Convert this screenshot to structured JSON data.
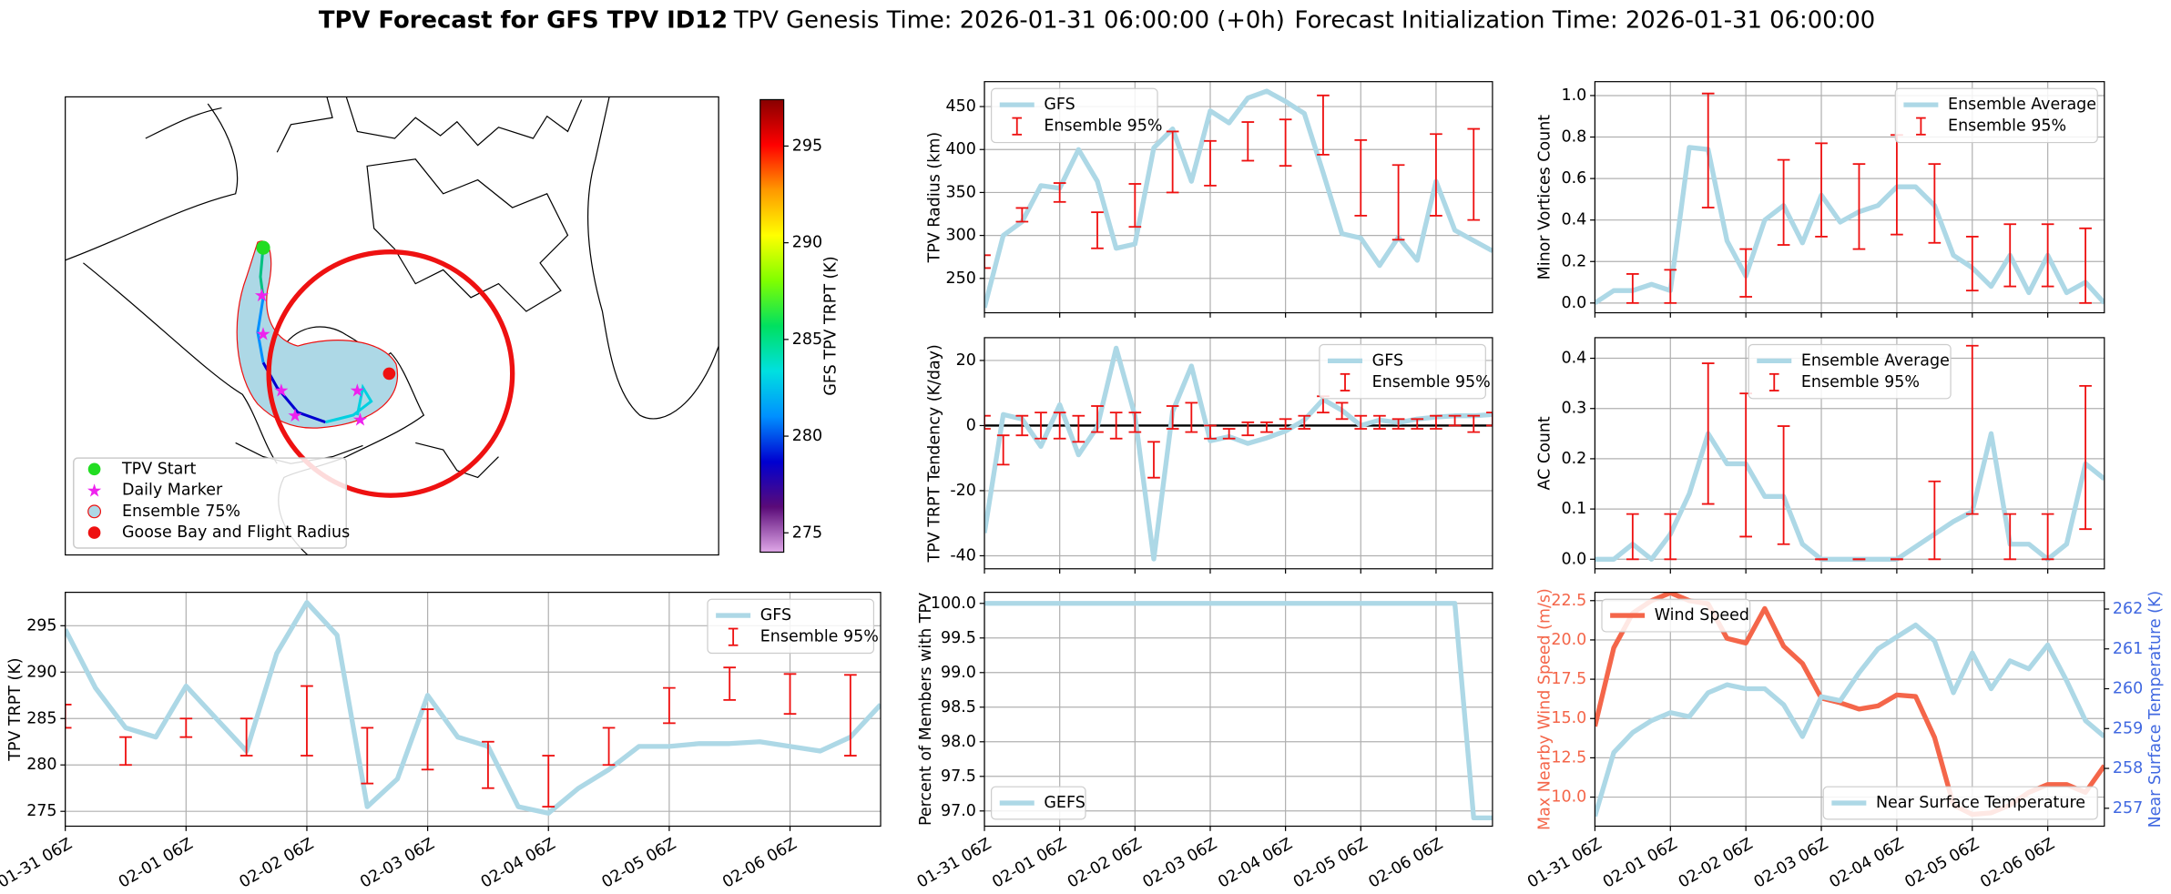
{
  "figure": {
    "title": "TPV Forecast for GFS TPV ID12",
    "genesis": "TPV Genesis Time: 2026-01-31 06:00:00 (+0h)",
    "init": "Forecast Initialization Time: 2026-01-31 06:00:00"
  },
  "time_axis": {
    "x": [
      "01-31 06Z",
      "01-31 12Z",
      "01-31 18Z",
      "02-01 00Z",
      "02-01 06Z",
      "02-01 12Z",
      "02-01 18Z",
      "02-02 00Z",
      "02-02 06Z",
      "02-02 12Z",
      "02-02 18Z",
      "02-03 00Z",
      "02-03 06Z",
      "02-03 12Z",
      "02-03 18Z",
      "02-04 00Z",
      "02-04 06Z",
      "02-04 12Z",
      "02-04 18Z",
      "02-05 00Z",
      "02-05 06Z",
      "02-05 12Z",
      "02-05 18Z",
      "02-06 00Z",
      "02-06 06Z",
      "02-06 12Z",
      "02-06 18Z",
      "02-07 00Z"
    ],
    "xticks": [
      "01-31 06Z",
      "02-01 06Z",
      "02-02 06Z",
      "02-03 06Z",
      "02-04 06Z",
      "02-05 06Z",
      "02-06 06Z"
    ]
  },
  "chart_data": [
    {
      "type": "map",
      "legend": [
        {
          "name": "TPV Start",
          "color": "#22dd22",
          "marker": "circle"
        },
        {
          "name": "Daily Marker",
          "color": "#ee22ee",
          "marker": "star"
        },
        {
          "name": "Ensemble 75%",
          "color": "#add8e6",
          "marker": "patch"
        },
        {
          "name": "Goose Bay and Flight Radius",
          "color": "#ee1111",
          "marker": "circle"
        }
      ],
      "colorbar": {
        "label": "GFS TPV TRPT (K)",
        "lim": [
          274,
          297.4
        ],
        "ticks": [
          275,
          280,
          285,
          290,
          295
        ],
        "colors": [
          "#e0a8e8",
          "#5a0a78",
          "#0000d0",
          "#0090ff",
          "#00e0e0",
          "#00e060",
          "#80ff00",
          "#ffff00",
          "#ff9900",
          "#ff0000",
          "#880000"
        ]
      }
    },
    {
      "type": "line",
      "ylabel": "TPV Radius (km)",
      "ylim": [
        210,
        479
      ],
      "yticks": [
        250,
        300,
        350,
        400,
        450
      ],
      "grid": true,
      "legend_loc": "upper left",
      "xtick_labels": false,
      "series": [
        {
          "name": "GFS",
          "color": "#add8e6",
          "values": [
            216,
            300,
            316,
            358,
            355,
            400,
            363,
            285,
            290,
            402,
            424,
            363,
            445,
            431,
            460,
            468,
            456,
            442,
            373,
            302,
            297,
            265,
            298,
            271,
            363,
            306,
            294,
            282
          ]
        }
      ],
      "errorbars": {
        "name": "Ensemble 95%",
        "color": "#ee1111",
        "x": [
          "01-31 06Z",
          "01-31 18Z",
          "02-01 06Z",
          "02-01 18Z",
          "02-02 06Z",
          "02-02 18Z",
          "02-03 06Z",
          "02-03 18Z",
          "02-04 06Z",
          "02-04 18Z",
          "02-05 06Z",
          "02-05 18Z",
          "02-06 06Z",
          "02-06 18Z"
        ],
        "low": [
          262,
          316,
          339,
          285,
          310,
          350,
          358,
          387,
          381,
          394,
          323,
          295,
          323,
          318
        ],
        "high": [
          277,
          332,
          361,
          327,
          360,
          421,
          410,
          432,
          435,
          463,
          411,
          382,
          418,
          424
        ]
      }
    },
    {
      "type": "line",
      "ylabel": "TPV TRPT Tendency (K/day)",
      "ylim": [
        -44,
        27
      ],
      "yticks": [
        -40,
        -20,
        0,
        20
      ],
      "grid": true,
      "legend_loc": "upper right",
      "xtick_labels": false,
      "hline": 0,
      "hline_color": "#000000",
      "series": [
        {
          "name": "GFS",
          "color": "#add8e6",
          "values": [
            -33,
            3.4,
            2,
            -6.4,
            6.4,
            -9,
            -0.4,
            23.8,
            3,
            -41,
            4.3,
            18.3,
            -4.7,
            -3.4,
            -5.5,
            -3.8,
            -1.7,
            1.7,
            8,
            4.7,
            0,
            1.7,
            0.9,
            2,
            2.6,
            3,
            3,
            3.4
          ]
        }
      ],
      "errorbars": {
        "name": "Ensemble 95%",
        "color": "#ee1111",
        "x": [
          "01-31 06Z",
          "01-31 12Z",
          "01-31 18Z",
          "02-01 00Z",
          "02-01 06Z",
          "02-01 12Z",
          "02-01 18Z",
          "02-02 00Z",
          "02-02 06Z",
          "02-02 12Z",
          "02-02 18Z",
          "02-03 00Z",
          "02-03 06Z",
          "02-03 12Z",
          "02-03 18Z",
          "02-04 00Z",
          "02-04 06Z",
          "02-04 12Z",
          "02-04 18Z",
          "02-05 00Z",
          "02-05 06Z",
          "02-05 12Z",
          "02-05 18Z",
          "02-06 00Z",
          "02-06 06Z",
          "02-06 12Z",
          "02-06 18Z",
          "02-07 00Z"
        ],
        "low": [
          -1,
          -12,
          -3,
          -4,
          -4,
          -5,
          -2,
          -4,
          -2,
          -16,
          -1,
          -2,
          -4,
          -4,
          -3,
          -2,
          -1,
          -1,
          4,
          2,
          -1,
          -1,
          -1,
          -1,
          -1,
          0,
          -2,
          0
        ],
        "high": [
          3,
          -3,
          3,
          4,
          4,
          3,
          6,
          4,
          4,
          -5,
          6,
          7,
          0,
          -1,
          1,
          1,
          2,
          3,
          9,
          7,
          3,
          3,
          2,
          2,
          3,
          3,
          3,
          4
        ]
      }
    },
    {
      "type": "line",
      "ylabel": "TPV TRPT (K)",
      "ylim": [
        273.4,
        298.6
      ],
      "yticks": [
        275,
        280,
        285,
        290,
        295
      ],
      "grid": true,
      "legend_loc": "upper right",
      "xtick_labels": true,
      "series": [
        {
          "name": "GFS",
          "color": "#add8e6",
          "values": [
            294.6,
            288.3,
            284,
            283,
            288.5,
            285,
            281.5,
            292,
            297.5,
            294,
            275.5,
            278.5,
            287.5,
            283,
            282,
            275.5,
            274.8,
            277.5,
            279.5,
            282,
            282,
            282.3,
            282.3,
            282.5,
            282,
            281.5,
            283,
            286.5
          ]
        }
      ],
      "errorbars": {
        "name": "Ensemble 95%",
        "color": "#ee1111",
        "x": [
          "01-31 06Z",
          "01-31 18Z",
          "02-01 06Z",
          "02-01 18Z",
          "02-02 06Z",
          "02-02 18Z",
          "02-03 06Z",
          "02-03 18Z",
          "02-04 06Z",
          "02-04 18Z",
          "02-05 06Z",
          "02-05 18Z",
          "02-06 06Z",
          "02-06 18Z"
        ],
        "low": [
          284,
          280,
          283,
          281,
          281,
          278,
          279.5,
          277.5,
          275.5,
          280,
          284.5,
          287,
          285.5,
          281
        ],
        "high": [
          286.5,
          283,
          285,
          285,
          288.5,
          284,
          286,
          282.5,
          281,
          284,
          288.3,
          290.5,
          289.8,
          289.7
        ]
      }
    },
    {
      "type": "line",
      "ylabel": "Percent of Members with TPV",
      "ylim": [
        96.78,
        100.16
      ],
      "yticks": [
        {
          "value": 97.0,
          "label": "97.0"
        },
        97.5,
        {
          "value": 98.0,
          "label": "98.0"
        },
        98.5,
        {
          "value": 99.0,
          "label": "99.0"
        },
        99.5,
        {
          "value": 100.0,
          "label": "100.0"
        }
      ],
      "grid": true,
      "legend_loc": "lower left",
      "xtick_labels": true,
      "series": [
        {
          "name": "GEFS",
          "color": "#add8e6",
          "values": [
            100,
            100,
            100,
            100,
            100,
            100,
            100,
            100,
            100,
            100,
            100,
            100,
            100,
            100,
            100,
            100,
            100,
            100,
            100,
            100,
            100,
            100,
            100,
            100,
            100,
            100,
            96.9,
            96.9
          ]
        }
      ]
    },
    {
      "type": "line",
      "ylabel": "Minor Vortices Count",
      "ylim": [
        -0.047,
        1.067
      ],
      "yticks": [
        {
          "value": 0.0,
          "label": "0.0"
        },
        0.2,
        0.4,
        0.6,
        0.8,
        {
          "value": 1.0,
          "label": "1.0"
        }
      ],
      "grid": true,
      "legend_loc": "upper right",
      "xtick_labels": false,
      "series": [
        {
          "name": "Ensemble Average",
          "color": "#add8e6",
          "values": [
            0,
            0.06,
            0.06,
            0.09,
            0.06,
            0.75,
            0.74,
            0.3,
            0.13,
            0.4,
            0.47,
            0.29,
            0.52,
            0.39,
            0.44,
            0.47,
            0.56,
            0.56,
            0.47,
            0.23,
            0.17,
            0.08,
            0.23,
            0.05,
            0.23,
            0.05,
            0.1,
            0
          ]
        }
      ],
      "errorbars": {
        "name": "Ensemble 95%",
        "color": "#ee1111",
        "x": [
          "01-31 06Z",
          "01-31 18Z",
          "02-01 06Z",
          "02-01 18Z",
          "02-02 06Z",
          "02-02 18Z",
          "02-03 06Z",
          "02-03 18Z",
          "02-04 06Z",
          "02-04 18Z",
          "02-05 06Z",
          "02-05 18Z",
          "02-06 06Z",
          "02-06 18Z"
        ],
        "low": [
          null,
          0,
          0,
          0.46,
          0.03,
          0.28,
          0.32,
          0.26,
          0.33,
          0.29,
          0.06,
          0.08,
          0.08,
          0
        ],
        "high": [
          null,
          0.14,
          0.16,
          1.01,
          0.26,
          0.69,
          0.77,
          0.67,
          0.81,
          0.67,
          0.32,
          0.38,
          0.38,
          0.36
        ]
      }
    },
    {
      "type": "line",
      "ylabel": "AC Count",
      "ylim": [
        -0.019,
        0.441
      ],
      "yticks": [
        {
          "value": 0.0,
          "label": "0.0"
        },
        0.1,
        0.2,
        0.3,
        0.4
      ],
      "grid": true,
      "legend_loc": "upper center",
      "xtick_labels": false,
      "series": [
        {
          "name": "Ensemble Average",
          "color": "#add8e6",
          "values": [
            0,
            0,
            0.03,
            0,
            0.05,
            0.13,
            0.25,
            0.19,
            0.19,
            0.125,
            0.125,
            0.03,
            0,
            0,
            0,
            0,
            0,
            0.025,
            0.05,
            0.075,
            0.095,
            0.25,
            0.03,
            0.03,
            0,
            0.03,
            0.19,
            0.16
          ]
        }
      ],
      "errorbars": {
        "name": "Ensemble 95%",
        "color": "#ee1111",
        "x": [
          "01-31 06Z",
          "01-31 18Z",
          "02-01 06Z",
          "02-01 18Z",
          "02-02 06Z",
          "02-02 18Z",
          "02-03 06Z",
          "02-03 18Z",
          "02-04 06Z",
          "02-04 18Z",
          "02-05 06Z",
          "02-05 18Z",
          "02-06 06Z",
          "02-06 18Z"
        ],
        "low": [
          null,
          0,
          0,
          0.11,
          0.045,
          0.03,
          0,
          0,
          0,
          0,
          0.09,
          0,
          0,
          0.06
        ],
        "high": [
          null,
          0.09,
          0.09,
          0.39,
          0.33,
          0.265,
          0,
          0,
          0,
          0.155,
          0.425,
          0.09,
          0.09,
          0.345
        ]
      }
    },
    {
      "type": "line",
      "ylabel": "Max Nearby Wind Speed (m/s)",
      "ylabel_color": "#f4664a",
      "y2label": "Near Surface Temperature (K)",
      "y2_color": "#4169e1",
      "ylim": [
        8.15,
        23.03
      ],
      "yticks": [
        {
          "value": 10.0,
          "label": "10.0"
        },
        12.5,
        {
          "value": 15.0,
          "label": "15.0"
        },
        17.5,
        {
          "value": 20.0,
          "label": "20.0"
        },
        22.5
      ],
      "y2lim": [
        256.55,
        262.42
      ],
      "y2ticks": [
        257,
        258,
        259,
        260,
        261,
        262
      ],
      "grid": true,
      "xtick_labels": true,
      "series": [
        {
          "name": "Wind Speed",
          "color": "#f4664a",
          "legend_loc": "upper left",
          "values": [
            14.5,
            19.5,
            21.7,
            22.5,
            23,
            22.5,
            22.3,
            20.1,
            19.8,
            22,
            19.6,
            18.5,
            16.3,
            16,
            15.6,
            15.8,
            16.5,
            16.4,
            13.8,
            9.5,
            8.9,
            9,
            9.5,
            10.3,
            10.8,
            10.8,
            10.3,
            12
          ]
        },
        {
          "name": "Near Surface Temperature",
          "color": "#add8e6",
          "axis": "y2",
          "legend_loc": "lower right",
          "values": [
            256.8,
            258.4,
            258.9,
            259.2,
            259.4,
            259.3,
            259.9,
            260.1,
            260,
            260,
            259.6,
            258.8,
            259.8,
            259.7,
            260.4,
            261,
            261.3,
            261.6,
            261.2,
            259.9,
            260.9,
            260,
            260.7,
            260.5,
            261.1,
            260.2,
            259.2,
            258.8
          ]
        }
      ]
    }
  ]
}
